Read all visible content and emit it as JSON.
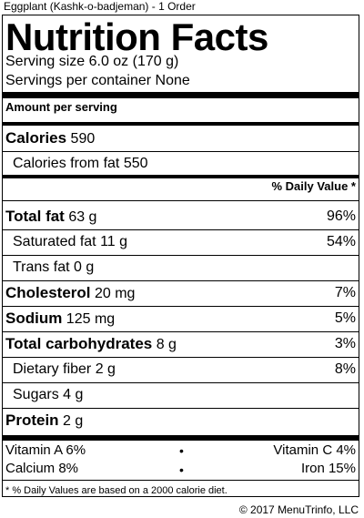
{
  "item_title": "Eggplant (Kashk-o-badjeman) - 1 Order",
  "label": {
    "title": "Nutrition Facts",
    "serving_size": "Serving size 6.0 oz (170 g)",
    "servings_per_container": "Servings per container None",
    "amount_per_serving": "Amount per serving",
    "calories_label": "Calories",
    "calories_value": "590",
    "calories_from_fat": "Calories from fat 550",
    "dv_header": "% Daily Value *",
    "nutrients": [
      {
        "name": "Total fat",
        "amount": "63 g",
        "dv": "96%"
      },
      {
        "name": "Saturated fat",
        "amount": "11 g",
        "dv": "54%"
      },
      {
        "name": "Trans fat",
        "amount": "0 g",
        "dv": ""
      },
      {
        "name": "Cholesterol",
        "amount": "20 mg",
        "dv": "7%"
      },
      {
        "name": "Sodium",
        "amount": "125 mg",
        "dv": "5%"
      },
      {
        "name": "Total carbohydrates",
        "amount": "8 g",
        "dv": "3%"
      },
      {
        "name": "Dietary fiber",
        "amount": "2 g",
        "dv": "8%"
      },
      {
        "name": "Sugars",
        "amount": "4 g",
        "dv": ""
      },
      {
        "name": "Protein",
        "amount": "2 g",
        "dv": ""
      }
    ],
    "vitamins": {
      "vitamin_a": "Vitamin A 6%",
      "vitamin_c": "Vitamin C 4%",
      "calcium": "Calcium 8%",
      "iron": "Iron 15%",
      "bullet": "•"
    },
    "footnote": "* % Daily Values are based on a 2000 calorie diet."
  },
  "copyright": "© 2017 MenuTrinfo, LLC"
}
